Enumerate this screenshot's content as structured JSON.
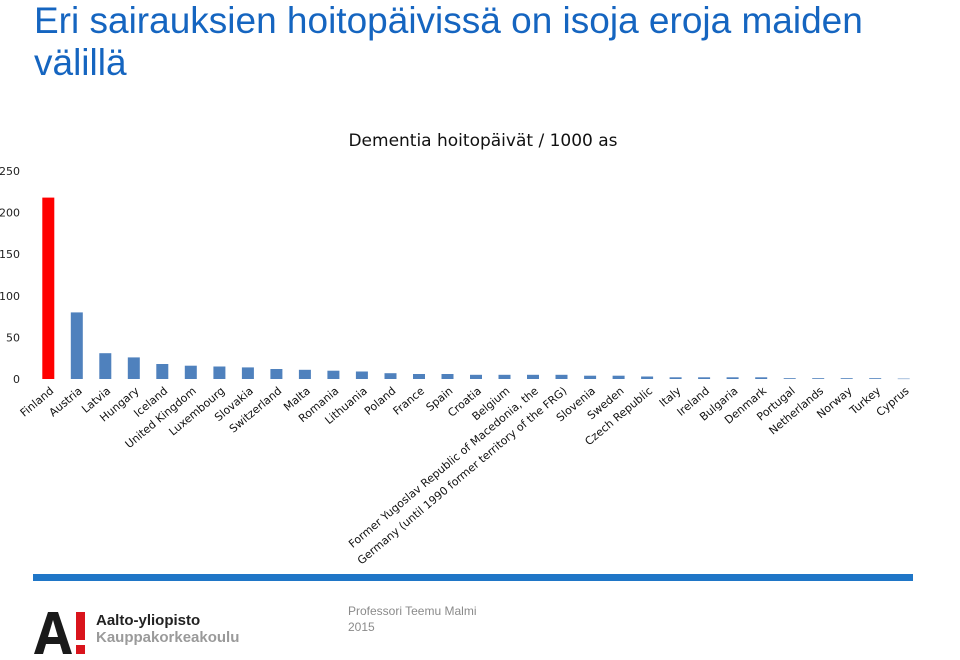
{
  "slide": {
    "title": "Eri sairauksien hoitopäivissä on isoja eroja maiden välillä"
  },
  "footer": {
    "org_name": "Aalto-yliopisto",
    "org_sub": "Kauppakorkeakoulu",
    "author": "Professori Teemu Malmi",
    "year": "2015",
    "logo_letter": "A!"
  },
  "colors": {
    "title": "#1565c0",
    "bar_default": "#4f81bd",
    "bar_highlight": "#ff0000",
    "divider": "#1f76c7"
  },
  "chart_data": {
    "type": "bar",
    "title": "Dementia hoitopäivät / 1000 as",
    "xlabel": "",
    "ylabel": "",
    "ylim": [
      0,
      250
    ],
    "yticks": [
      0,
      50,
      100,
      150,
      200,
      250
    ],
    "grid": false,
    "highlight_category": "Finland",
    "categories": [
      "Finland",
      "Austria",
      "Latvia",
      "Hungary",
      "Iceland",
      "United Kingdom",
      "Luxembourg",
      "Slovakia",
      "Switzerland",
      "Malta",
      "Romania",
      "Lithuania",
      "Poland",
      "France",
      "Spain",
      "Croatia",
      "Belgium",
      "Former Yugoslav Republic of Macedonia, the",
      "Germany (until 1990 former territory of the FRG)",
      "Slovenia",
      "Sweden",
      "Czech Republic",
      "Italy",
      "Ireland",
      "Bulgaria",
      "Denmark",
      "Portugal",
      "Netherlands",
      "Norway",
      "Turkey",
      "Cyprus"
    ],
    "values": [
      218,
      80,
      31,
      26,
      18,
      16,
      15,
      14,
      12,
      11,
      10,
      9,
      7,
      6,
      6,
      5,
      5,
      5,
      5,
      4,
      4,
      3,
      2,
      2,
      2,
      2,
      1,
      1,
      1,
      1,
      0.5
    ]
  }
}
